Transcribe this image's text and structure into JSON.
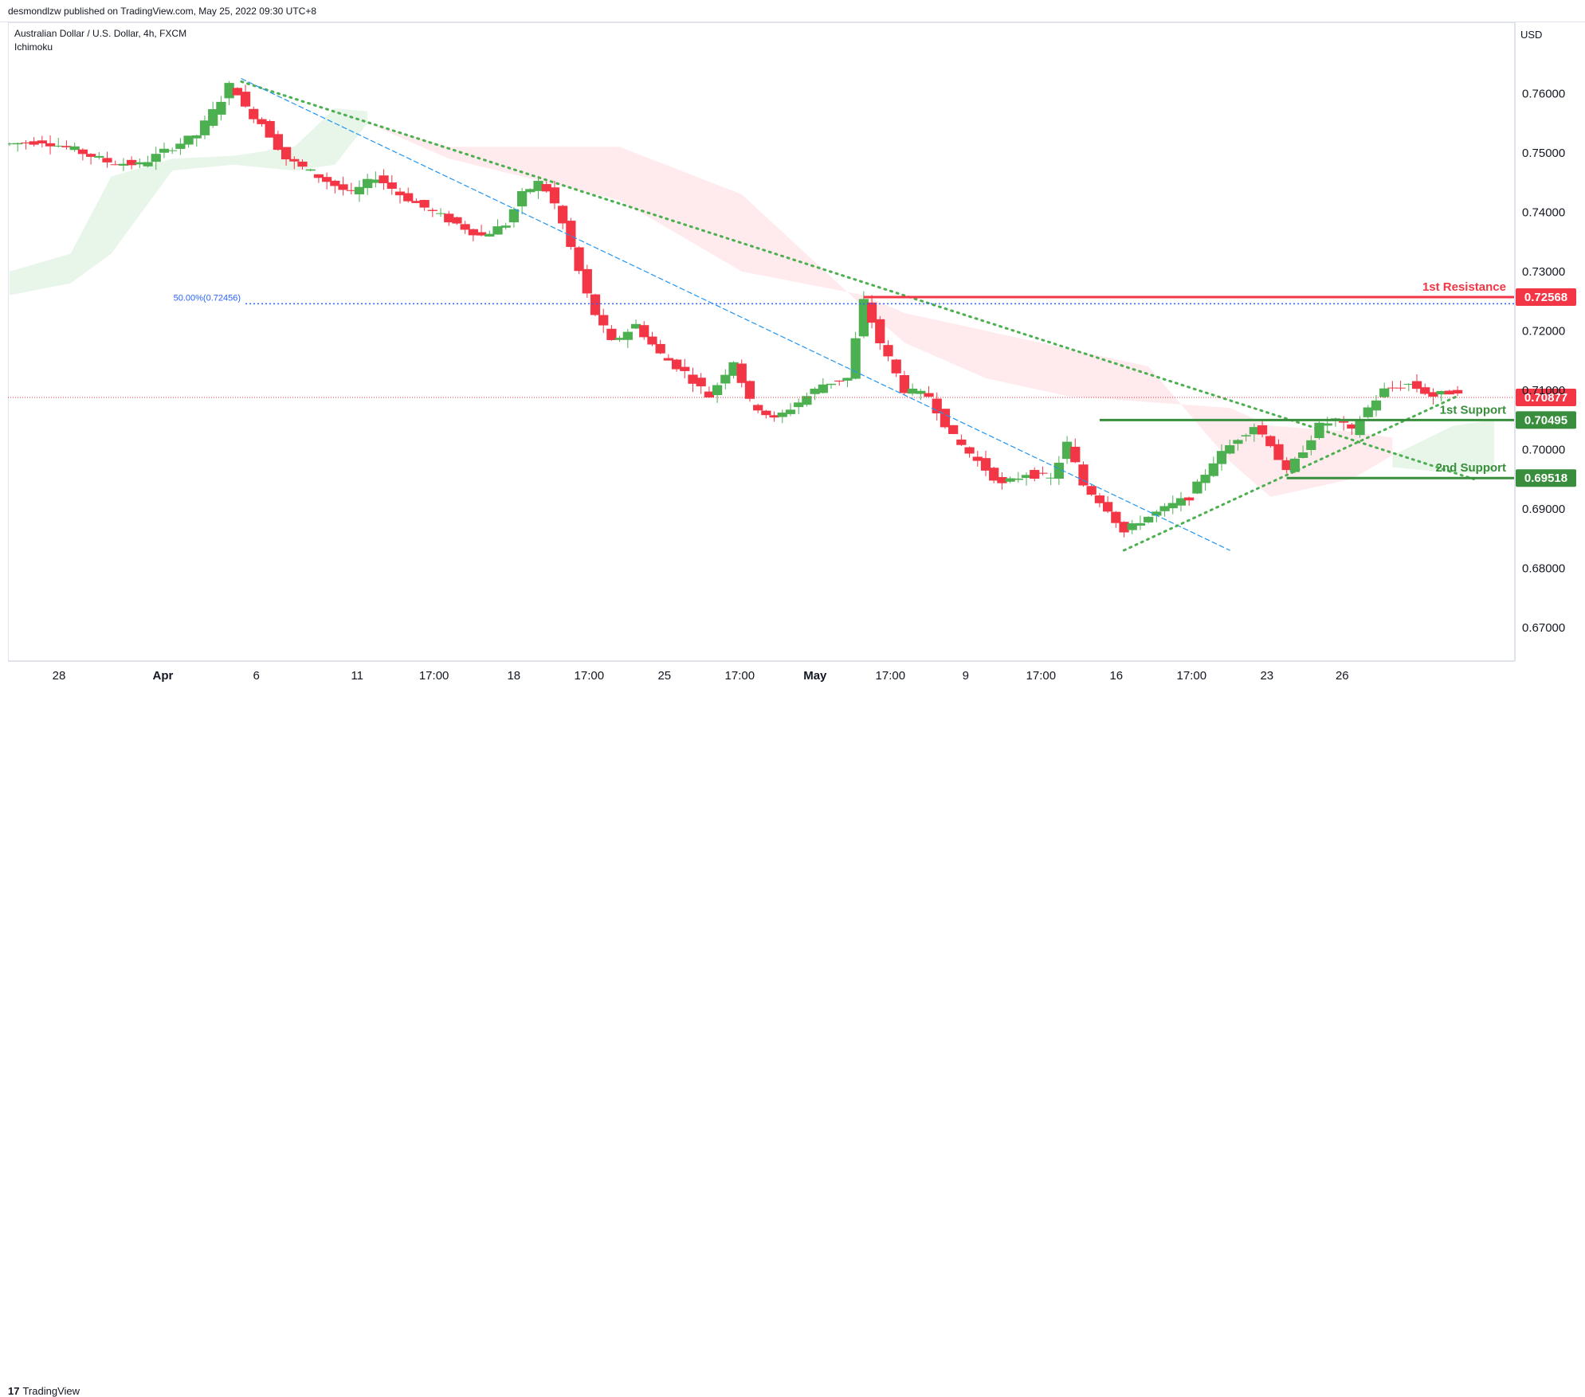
{
  "header": {
    "published_by": "desmondlzw published on TradingView.com, May 25, 2022 09:30 UTC+8"
  },
  "legend": {
    "symbol_line": "Australian Dollar / U.S. Dollar, 4h, FXCM",
    "indicator": "Ichimoku"
  },
  "price_axis": {
    "currency": "USD",
    "ticks": [
      "0.76000",
      "0.75000",
      "0.74000",
      "0.73000",
      "0.72000",
      "0.71000",
      "0.70000",
      "0.69000",
      "0.68000",
      "0.67000"
    ]
  },
  "time_axis": {
    "ticks": [
      "28",
      "Apr",
      "6",
      "11",
      "17:00",
      "18",
      "17:00",
      "25",
      "17:00",
      "May",
      "17:00",
      "9",
      "17:00",
      "16",
      "17:00",
      "23",
      "26"
    ]
  },
  "footer": {
    "brand": "TradingView",
    "brand_mark": "17"
  },
  "colors": {
    "up": "#089981",
    "up_alt": "#4caf50",
    "down": "#f23645",
    "resistance": "#f23645",
    "support": "#388e3c",
    "fib": "#2962ff",
    "trend_dotted": "#4caf50",
    "trend_dashed": "#2196f3",
    "cloud_bull": "#e8f5e9",
    "cloud_bear": "#ffebee"
  },
  "chart_data": {
    "type": "candlestick",
    "symbol": "Australian Dollar / U.S. Dollar",
    "timeframe": "4h",
    "source": "FXCM",
    "indicator": "Ichimoku",
    "ylim": [
      0.665,
      0.7677
    ],
    "y_axis_ticks": [
      0.76,
      0.75,
      0.74,
      0.73,
      0.72,
      0.71,
      0.7,
      0.69,
      0.68,
      0.67
    ],
    "grid": false,
    "levels": [
      {
        "label": "1st Resistance",
        "price": 0.72568,
        "price_label": "0.72568",
        "color": "#f23645"
      },
      {
        "label": "1st Support",
        "price": 0.70495,
        "price_label": "0.70495",
        "color": "#388e3c"
      },
      {
        "label": "2nd Support",
        "price": 0.69518,
        "price_label": "0.69518",
        "color": "#388e3c"
      }
    ],
    "current_price": {
      "price": 0.70877,
      "label": "0.70877"
    },
    "fib_level": {
      "label": "50.00%(0.72456)",
      "price": 0.72456
    },
    "price_path": [
      [
        0,
        0.7515
      ],
      [
        8,
        0.752
      ],
      [
        16,
        0.7505
      ],
      [
        24,
        0.7485
      ],
      [
        32,
        0.748
      ],
      [
        40,
        0.751
      ],
      [
        46,
        0.753
      ],
      [
        52,
        0.759
      ],
      [
        55,
        0.7625
      ],
      [
        57,
        0.758
      ],
      [
        62,
        0.755
      ],
      [
        68,
        0.749
      ],
      [
        76,
        0.746
      ],
      [
        84,
        0.743
      ],
      [
        90,
        0.746
      ],
      [
        96,
        0.743
      ],
      [
        104,
        0.74
      ],
      [
        110,
        0.738
      ],
      [
        116,
        0.736
      ],
      [
        122,
        0.738
      ],
      [
        126,
        0.743
      ],
      [
        130,
        0.745
      ],
      [
        133,
        0.743
      ],
      [
        136,
        0.738
      ],
      [
        140,
        0.73
      ],
      [
        143,
        0.724
      ],
      [
        148,
        0.718
      ],
      [
        154,
        0.721
      ],
      [
        160,
        0.716
      ],
      [
        166,
        0.713
      ],
      [
        172,
        0.709
      ],
      [
        178,
        0.715
      ],
      [
        182,
        0.708
      ],
      [
        188,
        0.705
      ],
      [
        194,
        0.708
      ],
      [
        200,
        0.711
      ],
      [
        206,
        0.712
      ],
      [
        210,
        0.725
      ],
      [
        214,
        0.718
      ],
      [
        220,
        0.71
      ],
      [
        226,
        0.709
      ],
      [
        232,
        0.702
      ],
      [
        238,
        0.698
      ],
      [
        244,
        0.694
      ],
      [
        250,
        0.696
      ],
      [
        256,
        0.695
      ],
      [
        260,
        0.701
      ],
      [
        264,
        0.694
      ],
      [
        270,
        0.69
      ],
      [
        274,
        0.686
      ],
      [
        278,
        0.688
      ],
      [
        284,
        0.69
      ],
      [
        290,
        0.692
      ],
      [
        296,
        0.698
      ],
      [
        302,
        0.702
      ],
      [
        306,
        0.704
      ],
      [
        310,
        0.701
      ],
      [
        314,
        0.696
      ],
      [
        318,
        0.7
      ],
      [
        322,
        0.704
      ],
      [
        326,
        0.705
      ],
      [
        330,
        0.703
      ],
      [
        334,
        0.707
      ],
      [
        338,
        0.71
      ],
      [
        344,
        0.711
      ],
      [
        350,
        0.709
      ],
      [
        356,
        0.71
      ]
    ],
    "ichimoku_cloud": {
      "bull_segment_1": [
        [
          0,
          0.73,
          0.726
        ],
        [
          15,
          0.733,
          0.728
        ],
        [
          25,
          0.746,
          0.733
        ],
        [
          40,
          0.749,
          0.747
        ],
        [
          55,
          0.7495,
          0.748
        ],
        [
          70,
          0.751,
          0.747
        ],
        [
          80,
          0.7575,
          0.748
        ],
        [
          88,
          0.757,
          0.755
        ]
      ],
      "bear_segment": [
        [
          88,
          0.755,
          0.755
        ],
        [
          108,
          0.751,
          0.749
        ],
        [
          150,
          0.751,
          0.742
        ],
        [
          180,
          0.743,
          0.73
        ],
        [
          210,
          0.724,
          0.726
        ],
        [
          220,
          0.718,
          0.723
        ],
        [
          240,
          0.712,
          0.72
        ],
        [
          260,
          0.709,
          0.717
        ],
        [
          280,
          0.708,
          0.714
        ],
        [
          300,
          0.707,
          0.698
        ],
        [
          310,
          0.704,
          0.692
        ],
        [
          330,
          0.703,
          0.695
        ],
        [
          340,
          0.702,
          0.699
        ]
      ],
      "bull_segment_2": [
        [
          340,
          0.699,
          0.697
        ],
        [
          355,
          0.704,
          0.696
        ],
        [
          365,
          0.705,
          0.696
        ]
      ]
    },
    "trendlines": [
      {
        "style": "dotted",
        "color": "#4caf50",
        "from": [
          57,
          0.762
        ],
        "to": [
          360,
          0.695
        ]
      },
      {
        "style": "dashed",
        "color": "#2196f3",
        "from": [
          57,
          0.7625
        ],
        "to": [
          300,
          0.683
        ]
      },
      {
        "style": "dotted",
        "color": "#4caf50",
        "from": [
          274,
          0.683
        ],
        "to": [
          356,
          0.709
        ]
      }
    ]
  }
}
